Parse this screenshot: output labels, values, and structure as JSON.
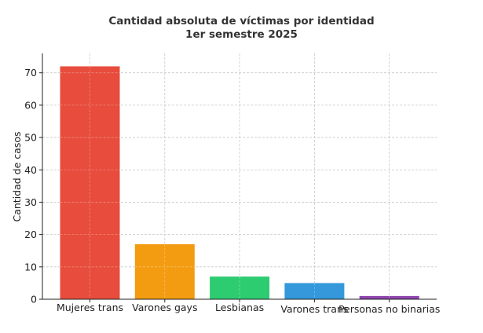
{
  "chart_data": {
    "type": "bar",
    "title": "Cantidad absoluta de víctimas por identidad",
    "subtitle": "1er semestre 2025",
    "xlabel": "",
    "ylabel": "Cantidad de casos",
    "categories": [
      "Mujeres trans",
      "Varones gays",
      "Lesbianas",
      "Varones trans",
      "Personas no binarias"
    ],
    "values": [
      72,
      17,
      7,
      5,
      1
    ],
    "colors": [
      "#e74c3c",
      "#f39c12",
      "#2ecc71",
      "#3498db",
      "#8e44ad"
    ],
    "ylim": [
      0,
      76
    ],
    "yticks": [
      0,
      10,
      20,
      30,
      40,
      50,
      60,
      70
    ],
    "grid": true
  }
}
